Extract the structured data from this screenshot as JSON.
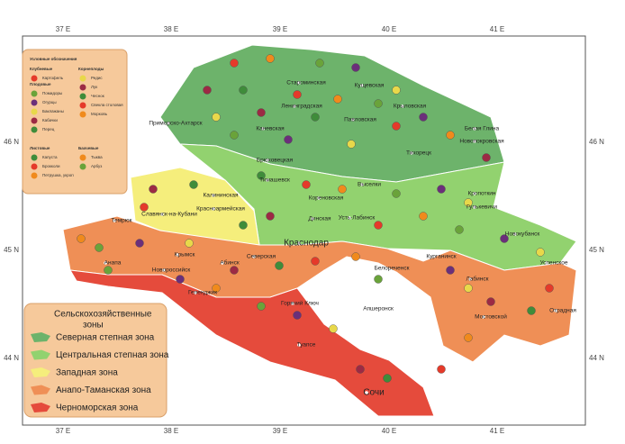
{
  "axes": {
    "longitudes": [
      "37 E",
      "38 E",
      "39 E",
      "40 E",
      "41 E"
    ],
    "latitudes": [
      "46 N",
      "45 N",
      "44 N"
    ]
  },
  "symbols_legend": {
    "title": "Условные обозначения",
    "groups": [
      {
        "name": "Клубневые",
        "items": [
          "Картофель"
        ]
      },
      {
        "name": "Плодовые",
        "items": [
          "Помидоры",
          "Огурцы",
          "Баклажаны",
          "Кабачки",
          "Перец"
        ]
      },
      {
        "name": "Корнеплоды",
        "items": [
          "Редис",
          "Лук",
          "Чеснок",
          "Свекла столовая",
          "Морковь"
        ]
      },
      {
        "name": "Листовые",
        "items": [
          "Капуста",
          "Брокколи",
          "Петрушка, укроп"
        ]
      },
      {
        "name": "Бахчевые",
        "items": [
          "Тыква",
          "Арбуз"
        ]
      }
    ]
  },
  "zones_legend": {
    "title_lines": [
      "Сельскохозяйственные",
      "зоны"
    ],
    "items": [
      "Северная степная зона",
      "Центральная степная зона",
      "Западная зона",
      "Анапо-Таманская зона",
      "Черноморская зона"
    ]
  },
  "places": [
    "Староминская",
    "Кущевская",
    "Ленинградская",
    "Крыловская",
    "Каневская",
    "Павловская",
    "Приморско-Ахтарск",
    "Белая Глина",
    "Новопокровская",
    "Тихорецк",
    "Брюховецкая",
    "Тимашевск",
    "Выселки",
    "Кореновская",
    "Калининская",
    "Славянск-на-Кубани",
    "Красноармейская",
    "Кропоткин",
    "Гулькевичи",
    "Динская",
    "Усть-Лабинск",
    "Краснодар",
    "Темрюк",
    "Крымск",
    "Анапа",
    "Абинск",
    "Северская",
    "Новороссийск",
    "Геленджик",
    "Курганинск",
    "Новокубанск",
    "Белореченск",
    "Горячий Ключ",
    "Апшеронск",
    "Лабинск",
    "Мостовской",
    "Отрадная",
    "Успенское",
    "Туапсе",
    "Сочи"
  ]
}
